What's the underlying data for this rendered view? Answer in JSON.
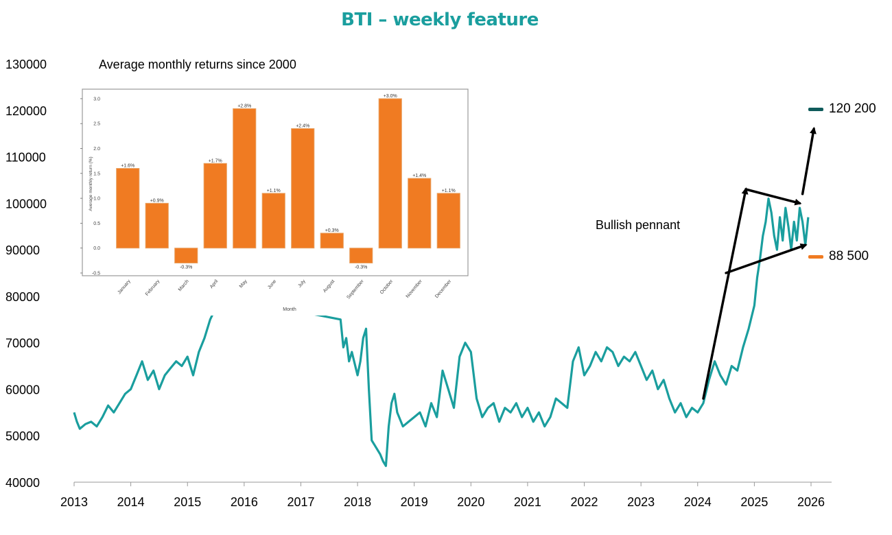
{
  "title": "BTI – weekly feature",
  "colors": {
    "title": "#1a9e9e",
    "line": "#1a9e9e",
    "bar": "#f07b22",
    "arrow": "#000000",
    "target_up": "#0f5b5b"
  },
  "annotations": {
    "inset_caption": "Average monthly returns since 2000",
    "pattern_label": "Bullish pennant",
    "target_high": "120 200",
    "target_low": "88 500"
  },
  "chart_data": [
    {
      "type": "line",
      "xlim": [
        2013,
        2026.4
      ],
      "ylim": [
        40000,
        130000
      ],
      "x_ticks": [
        "2013",
        "2014",
        "2015",
        "2016",
        "2017",
        "2018",
        "2019",
        "2020",
        "2021",
        "2022",
        "2023",
        "2024",
        "2025",
        "2026"
      ],
      "y_ticks": [
        "40000",
        "50000",
        "60000",
        "70000",
        "80000",
        "90000",
        "100000",
        "110000",
        "120000",
        "130000"
      ],
      "series": [
        {
          "x": [
            2013.0,
            2013.05,
            2013.1,
            2013.2,
            2013.3,
            2013.4,
            2013.5,
            2013.6,
            2013.7,
            2013.8,
            2013.9,
            2014.0,
            2014.1,
            2014.2,
            2014.3,
            2014.4,
            2014.5,
            2014.6,
            2014.7,
            2014.8,
            2014.9,
            2015.0,
            2015.1,
            2015.2,
            2015.3,
            2015.4,
            2015.6,
            2017.7,
            2017.75,
            2017.8,
            2017.85,
            2017.9,
            2018.0,
            2018.05,
            2018.1,
            2018.15,
            2018.2,
            2018.25,
            2018.3,
            2018.35,
            2018.4,
            2018.45,
            2018.5,
            2018.55,
            2018.6,
            2018.65,
            2018.7,
            2018.8,
            2018.9,
            2019.0,
            2019.1,
            2019.2,
            2019.3,
            2019.4,
            2019.5,
            2019.6,
            2019.7,
            2019.8,
            2019.9,
            2020.0,
            2020.1,
            2020.2,
            2020.3,
            2020.4,
            2020.5,
            2020.6,
            2020.7,
            2020.8,
            2020.9,
            2021.0,
            2021.1,
            2021.2,
            2021.3,
            2021.4,
            2021.5,
            2021.6,
            2021.7,
            2021.8,
            2021.9,
            2022.0,
            2022.1,
            2022.2,
            2022.3,
            2022.4,
            2022.5,
            2022.6,
            2022.7,
            2022.8,
            2022.9,
            2023.0,
            2023.1,
            2023.2,
            2023.3,
            2023.4,
            2023.5,
            2023.6,
            2023.7,
            2023.8,
            2023.9,
            2024.0,
            2024.1,
            2024.2,
            2024.3,
            2024.4,
            2024.5,
            2024.6,
            2024.7,
            2024.8,
            2024.9,
            2025.0,
            2025.05,
            2025.1,
            2025.15,
            2025.2,
            2025.25,
            2025.3,
            2025.35,
            2025.4,
            2025.45,
            2025.5,
            2025.55,
            2025.6,
            2025.65,
            2025.7,
            2025.75,
            2025.8,
            2025.85,
            2025.9,
            2025.95
          ],
          "y": [
            55000,
            53000,
            51500,
            52500,
            53000,
            52000,
            54000,
            56500,
            55000,
            57000,
            59000,
            60000,
            63000,
            66000,
            62000,
            64000,
            60000,
            63000,
            64500,
            66000,
            65000,
            67000,
            63000,
            68000,
            71000,
            75000,
            80000,
            75000,
            69000,
            71000,
            66000,
            68000,
            63000,
            66000,
            71000,
            73000,
            60000,
            49000,
            48000,
            47000,
            46000,
            44500,
            43500,
            52000,
            57000,
            59000,
            55000,
            52000,
            53000,
            54000,
            55000,
            52000,
            57000,
            54000,
            64000,
            60000,
            56000,
            67000,
            70000,
            68000,
            58000,
            54000,
            56000,
            57000,
            53000,
            56000,
            55000,
            57000,
            54000,
            56000,
            53000,
            55000,
            52000,
            54000,
            58000,
            57000,
            56000,
            66000,
            69000,
            63000,
            65000,
            68000,
            66000,
            69000,
            68000,
            65000,
            67000,
            66000,
            68000,
            65000,
            62000,
            64000,
            60000,
            62000,
            58000,
            55000,
            57000,
            54000,
            56000,
            55000,
            57000,
            62000,
            66000,
            63000,
            61000,
            65000,
            64000,
            69000,
            73000,
            78000,
            84000,
            88000,
            93000,
            96000,
            101000,
            98000,
            93000,
            90000,
            97000,
            92000,
            99000,
            95000,
            90000,
            96000,
            92000,
            99000,
            96000,
            91000,
            97000
          ]
        }
      ],
      "pennant": {
        "pole": [
          {
            "x": 2024.1,
            "y": 58000
          },
          {
            "x": 2024.85,
            "y": 103000
          }
        ],
        "upper": [
          {
            "x": 2024.85,
            "y": 103000
          },
          {
            "x": 2025.8,
            "y": 100000
          }
        ],
        "lower": [
          {
            "x": 2024.5,
            "y": 85000
          },
          {
            "x": 2025.9,
            "y": 91000
          }
        ],
        "target": [
          {
            "x": 2025.85,
            "y": 102000
          },
          {
            "x": 2026.05,
            "y": 116000
          }
        ]
      },
      "target_levels": [
        120200,
        88500
      ]
    },
    {
      "type": "bar",
      "title": "",
      "xlabel": "Month",
      "ylabel": "Average monthly return (%)",
      "ylim": [
        -0.5,
        3.0
      ],
      "y_ticks": [
        "3.0",
        "2.5",
        "2.0",
        "1.5",
        "1.0",
        "0.5",
        "0.0",
        "-0.5"
      ],
      "categories": [
        "January",
        "February",
        "March",
        "April",
        "May",
        "June",
        "July",
        "August",
        "September",
        "October",
        "November",
        "December"
      ],
      "values": [
        1.6,
        0.9,
        -0.3,
        1.7,
        2.8,
        1.1,
        2.4,
        0.3,
        -0.3,
        3.0,
        1.4,
        1.1
      ],
      "data_labels": [
        "+1.6%",
        "+0.9%",
        "-0.3%",
        "+1.7%",
        "+2.8%",
        "+1.1%",
        "+2.4%",
        "+0.3%",
        "-0.3%",
        "+3.0%",
        "+1.4%",
        "+1.1%"
      ]
    }
  ]
}
